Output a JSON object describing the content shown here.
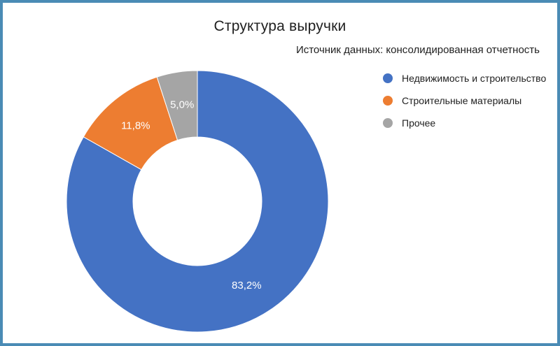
{
  "frame": {
    "border_color": "#4A8BB5",
    "background": "#FFFFFF"
  },
  "chart_data": {
    "type": "pie",
    "subtype": "donut",
    "title": "Структура выручки",
    "subtitle": "Источник данных: консолидированная отчетность",
    "unit": "%",
    "decimal_separator": ",",
    "start_angle_deg": 0,
    "direction": "clockwise",
    "donut_hole_ratio": 0.49,
    "legend_position": "right",
    "slices": [
      {
        "label": "Недвижимость и строительство",
        "value": 83.2,
        "display": "83,2%",
        "color": "#4472C4"
      },
      {
        "label": "Строительные материалы",
        "value": 11.8,
        "display": "11,8%",
        "color": "#ED7D31"
      },
      {
        "label": "Прочее",
        "value": 5.0,
        "display": "5,0%",
        "color": "#A5A5A5"
      }
    ],
    "text_colors": {
      "title": "#212121",
      "subtitle": "#212121",
      "legend": "#212121",
      "slice_labels": "#FFFFFF"
    }
  }
}
